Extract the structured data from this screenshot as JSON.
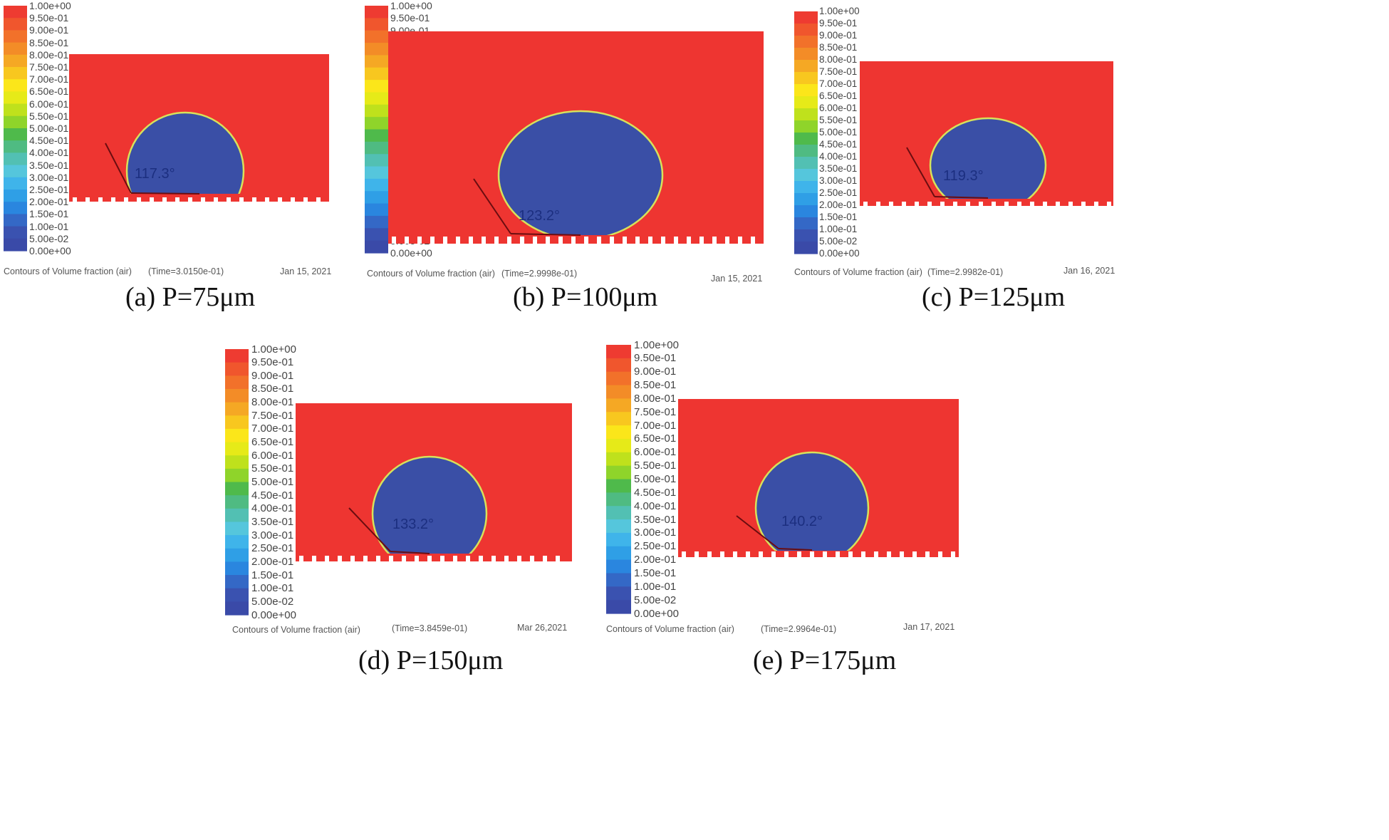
{
  "legend": {
    "labels": [
      "1.00e+00",
      "9.50e-01",
      "9.00e-01",
      "8.50e-01",
      "8.00e-01",
      "7.50e-01",
      "7.00e-01",
      "6.50e-01",
      "6.00e-01",
      "5.50e-01",
      "5.00e-01",
      "4.50e-01",
      "4.00e-01",
      "3.50e-01",
      "3.00e-01",
      "2.50e-01",
      "2.00e-01",
      "1.50e-01",
      "1.00e-01",
      "5.00e-02",
      "0.00e+00"
    ],
    "colors": [
      "#ee3b31",
      "#f0562d",
      "#f2712a",
      "#f38c27",
      "#f5a824",
      "#f8c71f",
      "#fbe61a",
      "#e6ea18",
      "#bfe11c",
      "#8fd42a",
      "#4fba4b",
      "#4fbb82",
      "#52c0b3",
      "#55c6dc",
      "#3fb4ea",
      "#2f9fe6",
      "#2a86df",
      "#3468c6",
      "#3a52b0",
      "#3a4aa8"
    ]
  },
  "colors": {
    "liquid": "#ee3531",
    "air": "#3a4fa6",
    "interface": "#d7e25a",
    "contact_line": "#6b0d10"
  },
  "panels": [
    {
      "id": "a",
      "caption": "(a) P=75μm",
      "angle_label": "117.3°",
      "footer": {
        "title": "Contours of Volume fraction (air)",
        "time": "(Time=3.0150e-01)",
        "date": "Jan 15, 2021"
      }
    },
    {
      "id": "b",
      "caption": "(b) P=100μm",
      "angle_label": "123.2°",
      "footer": {
        "title": "Contours of Volume fraction (air)",
        "time": "(Time=2.9998e-01)",
        "date": "Jan 15, 2021"
      }
    },
    {
      "id": "c",
      "caption": "(c) P=125μm",
      "angle_label": "119.3°",
      "footer": {
        "title": "Contours of Volume fraction (air)",
        "time": "(Time=2.9982e-01)",
        "date": "Jan 16, 2021"
      }
    },
    {
      "id": "d",
      "caption": "(d) P=150μm",
      "angle_label": "133.2°",
      "footer": {
        "title": "Contours of Volume fraction (air)",
        "time": "(Time=3.8459e-01)",
        "date": "Mar 26,2021"
      }
    },
    {
      "id": "e",
      "caption": "(e) P=175μm",
      "angle_label": "140.2°",
      "footer": {
        "title": "Contours of Volume fraction (air)",
        "time": "(Time=2.9964e-01)",
        "date": "Jan 17, 2021"
      }
    }
  ]
}
